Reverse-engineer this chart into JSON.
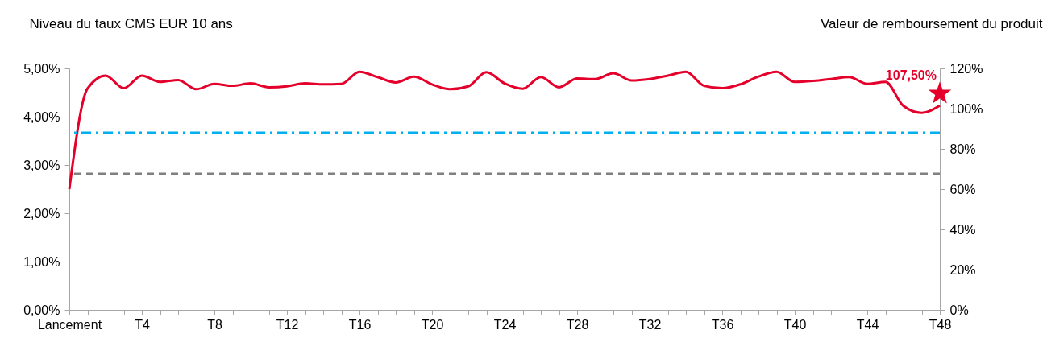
{
  "chart_data": {
    "type": "line",
    "ylabel": "Niveau du taux CMS EUR 10 ans",
    "y2label": "Valeur de remboursement du produit",
    "categories": [
      "Lancement",
      null,
      null,
      null,
      "T4",
      null,
      null,
      null,
      "T8",
      null,
      null,
      null,
      "T12",
      null,
      null,
      null,
      "T16",
      null,
      null,
      null,
      "T20",
      null,
      null,
      null,
      "T24",
      null,
      null,
      null,
      "T28",
      null,
      null,
      null,
      "T32",
      null,
      null,
      null,
      "T36",
      null,
      null,
      null,
      "T40",
      null,
      null,
      null,
      "T44",
      null,
      null,
      null,
      "T48"
    ],
    "series": [
      {
        "color": "#e4002b",
        "values": [
          2.5,
          4.58,
          4.85,
          4.59,
          4.85,
          4.72,
          4.76,
          4.57,
          4.68,
          4.64,
          4.69,
          4.61,
          4.63,
          4.69,
          4.67,
          4.68,
          4.93,
          4.82,
          4.71,
          4.83,
          4.67,
          4.57,
          4.63,
          4.92,
          4.69,
          4.58,
          4.82,
          4.61,
          4.79,
          4.78,
          4.9,
          4.75,
          4.78,
          4.85,
          4.93,
          4.64,
          4.59,
          4.67,
          4.83,
          4.93,
          4.72,
          4.74,
          4.78,
          4.82,
          4.68,
          4.72,
          4.22,
          4.08,
          4.23
        ]
      },
      {
        "type": "scatter",
        "axis": "y2",
        "color": "#e4002b",
        "marker": "star",
        "x": [
          "T48"
        ],
        "values": [
          107.5
        ],
        "value_labels": [
          "107,50%"
        ]
      }
    ],
    "ylim": [
      0,
      5
    ],
    "yticks": [
      {
        "value": 0,
        "label": "0,00%"
      },
      {
        "value": 1,
        "label": "1,00%"
      },
      {
        "value": 2,
        "label": "2,00%"
      },
      {
        "value": 3,
        "label": "3,00%"
      },
      {
        "value": 4,
        "label": "4,00%"
      },
      {
        "value": 5,
        "label": "5,00%"
      }
    ],
    "y2lim": [
      0,
      120
    ],
    "y2ticks": [
      {
        "value": 0,
        "label": "0%"
      },
      {
        "value": 20,
        "label": "20%"
      },
      {
        "value": 40,
        "label": "40%"
      },
      {
        "value": 60,
        "label": "60%"
      },
      {
        "value": 80,
        "label": "80%"
      },
      {
        "value": 100,
        "label": "100%"
      },
      {
        "value": 120,
        "label": "120%"
      }
    ],
    "ref_lines": [
      {
        "axis": "y",
        "value": 3.67,
        "color": "#00b0f0",
        "line_style": "dashdot"
      },
      {
        "axis": "y",
        "value": 2.82,
        "color": "#808080",
        "line_style": "dashed"
      }
    ],
    "grid": false
  }
}
